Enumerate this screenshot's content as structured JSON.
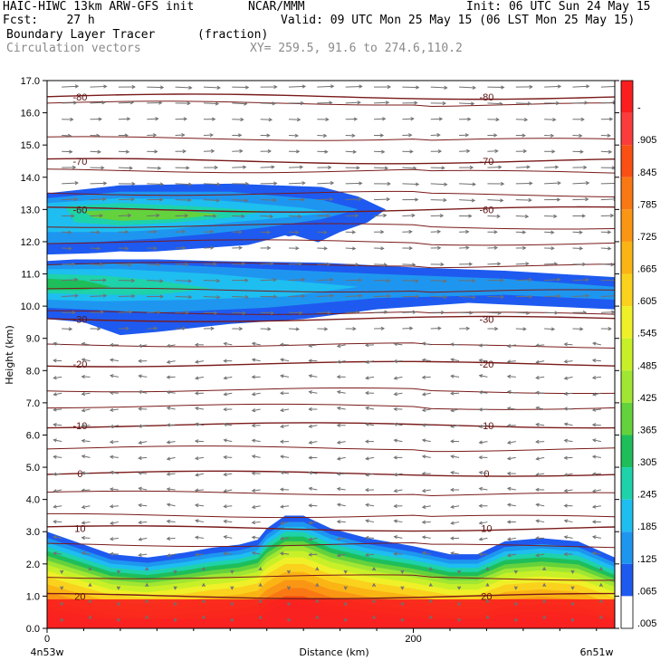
{
  "header": {
    "line1_left": "HAIC-HIWC 13km ARW-GFS init",
    "line1_mid": "NCAR/MMM",
    "line1_right": "Init: 06 UTC Sun 24 May 15",
    "line2_left": "Fcst:    27 h",
    "line2_right": "Valid: 09 UTC Mon 25 May 15 (06 LST Mon 25 May 15)",
    "line3_left": "Boundary Layer Tracer",
    "line3_mid": "(fraction)",
    "line4_left": "Circulation vectors",
    "line4_mid": "XY= 259.5, 91.6 to 274.6,110.2"
  },
  "chart_data": {
    "type": "heatmap",
    "xlabel": "Distance (km)",
    "ylabel": "Height (km)",
    "xlim": [
      0,
      310
    ],
    "ylim": [
      0,
      17
    ],
    "x_ticks": [
      {
        "value": 0,
        "label": "0"
      },
      {
        "value": 200,
        "label": "200"
      }
    ],
    "x_end_labels": {
      "left": "4n53w",
      "right": "6n51w"
    },
    "y_ticks": [
      "0.0",
      "1.0",
      "2.0",
      "3.0",
      "4.0",
      "5.0",
      "6.0",
      "7.0",
      "8.0",
      "9.0",
      "10.0",
      "11.0",
      "12.0",
      "13.0",
      "14.0",
      "15.0",
      "16.0",
      "17.0"
    ],
    "colorbar": {
      "labels": [
        "-",
        ".905",
        ".845",
        ".785",
        ".725",
        ".665",
        ".605",
        ".545",
        ".485",
        ".425",
        ".365",
        ".305",
        ".245",
        ".185",
        ".125",
        ".065",
        ".005"
      ],
      "colors": [
        "#fa1e1e",
        "#fa3c3c",
        "#fa5014",
        "#fa7814",
        "#fa9614",
        "#fab414",
        "#fad21e",
        "#f0f028",
        "#c8f028",
        "#a0e632",
        "#64d23c",
        "#1ebe5a",
        "#1ed2aa",
        "#1ebef0",
        "#1e96f0",
        "#1e5af0",
        "#ffffff"
      ]
    },
    "tracer_regions": [
      {
        "name": "upper layer",
        "x_range": [
          0,
          185
        ],
        "z_range": [
          12.2,
          13.8
        ],
        "peak_fraction": 0.365
      },
      {
        "name": "mid layer",
        "x_range": [
          0,
          310
        ],
        "z_range": [
          9.1,
          11.4
        ],
        "peak_fraction": 0.305
      },
      {
        "name": "boundary layer",
        "x_range": [
          0,
          310
        ],
        "z_range": [
          0,
          3.6
        ],
        "peak_fraction": 0.965
      }
    ],
    "temperature_contours": [
      {
        "label": "-80",
        "z": 16.5
      },
      {
        "label": "-70",
        "z": 14.5
      },
      {
        "label": "-60",
        "z": 13.0
      },
      {
        "label": "-30",
        "z": 9.6
      },
      {
        "label": "-20",
        "z": 8.2
      },
      {
        "label": "-10",
        "z": 6.3
      },
      {
        "label": "0",
        "z": 4.8
      },
      {
        "label": "10",
        "z": 3.1
      },
      {
        "label": "20",
        "z": 1.0
      }
    ]
  }
}
